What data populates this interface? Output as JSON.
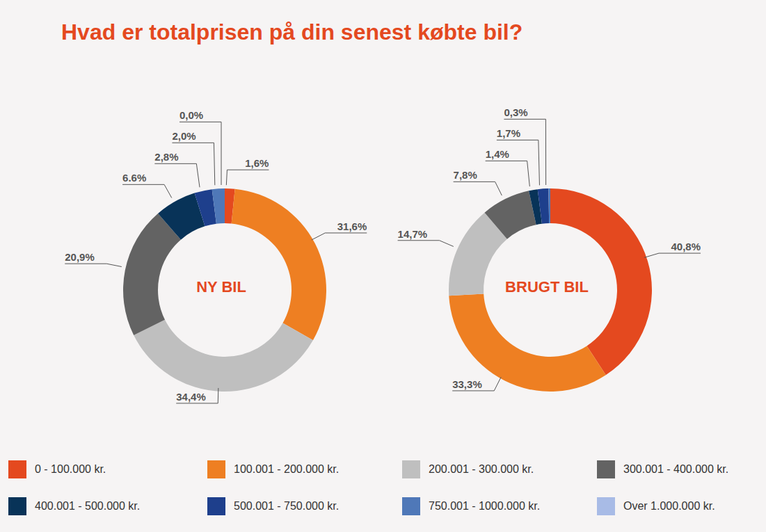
{
  "title": "Hvad er totalprisen på din senest købte bil?",
  "chart_data": [
    {
      "type": "pie",
      "title": "NY BIL",
      "categories": [
        "0 - 100.000 kr.",
        "100.001 - 200.000 kr.",
        "200.001 - 300.000 kr.",
        "300.001 - 400.000 kr.",
        "400.001 - 500.000 kr.",
        "500.001 - 750.000 kr.",
        "750.001 - 1000.000 kr.",
        "Over 1.000.000 kr."
      ],
      "values": [
        1.6,
        31.6,
        34.4,
        20.9,
        6.6,
        2.8,
        2.0,
        0.0
      ],
      "value_labels": [
        "1,6%",
        "31,6%",
        "34,4%",
        "20,9%",
        "6.6%",
        "2,8%",
        "2,0%",
        "0,0%"
      ],
      "colors": [
        "#e4491f",
        "#ee7f22",
        "#bfbfbf",
        "#636363",
        "#083358",
        "#1e3f8c",
        "#4f78b8",
        "#a8bbe6"
      ],
      "data_labels": true,
      "legend": "bottom"
    },
    {
      "type": "pie",
      "title": "BRUGT BIL",
      "categories": [
        "0 - 100.000 kr.",
        "100.001 - 200.000 kr.",
        "200.001 - 300.000 kr.",
        "300.001 - 400.000 kr.",
        "400.001 - 500.000 kr.",
        "500.001 - 750.000 kr.",
        "750.001 - 1000.000 kr.",
        "Over 1.000.000 kr."
      ],
      "values": [
        40.8,
        33.3,
        14.7,
        7.8,
        1.4,
        1.7,
        0.3,
        0
      ],
      "value_labels": [
        "40,8%",
        "33,3%",
        "14,7%",
        "7,8%",
        "1,4%",
        "1,7%",
        "0,3%",
        null
      ],
      "colors": [
        "#e4491f",
        "#ee7f22",
        "#bfbfbf",
        "#636363",
        "#083358",
        "#1e3f8c",
        "#4f78b8",
        "#a8bbe6"
      ],
      "data_labels": true,
      "legend": "bottom"
    }
  ]
}
